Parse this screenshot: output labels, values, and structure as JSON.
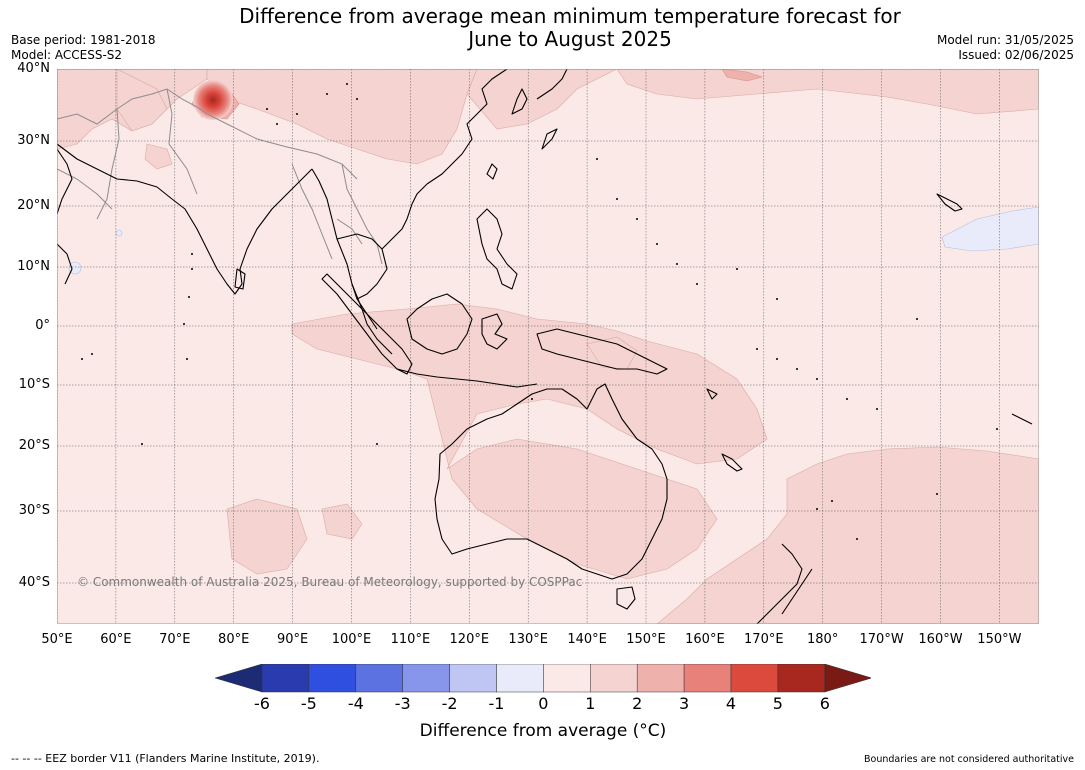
{
  "header": {
    "title_line1": "Difference from average mean minimum temperature forecast for",
    "title_line2": "June to August 2025",
    "base_period": "Base period: 1981-2018",
    "model": "Model: ACCESS-S2",
    "model_run": "Model run: 31/05/2025",
    "issued": "Issued: 02/06/2025"
  },
  "map": {
    "lat_labels": [
      "40°N",
      "30°N",
      "20°N",
      "10°N",
      "0°",
      "10°S",
      "20°S",
      "30°S",
      "40°S"
    ],
    "lon_labels": [
      "50°E",
      "60°E",
      "70°E",
      "80°E",
      "90°E",
      "100°E",
      "110°E",
      "120°E",
      "130°E",
      "140°E",
      "150°E",
      "160°E",
      "170°E",
      "180°",
      "170°W",
      "160°W",
      "150°W"
    ],
    "copyright": "© Commonwealth of Australia 2025, Bureau of Meteorology, supported by COSPPac",
    "colors": {
      "background": "#fbe9e7",
      "anomaly_1_2": "#f4d3d0",
      "anomaly_2_3": "#eeb1ac",
      "anomaly_4_5": "#e04a3e",
      "anomaly_5_6": "#a8271f",
      "anomaly_neg": "#e9ebfa",
      "coast": "#000000",
      "border": "#8c8c8c",
      "grid": "#555555"
    }
  },
  "legend": {
    "label": "Difference from average (°C)",
    "ticks": [
      "-6",
      "-5",
      "-4",
      "-3",
      "-2",
      "-1",
      "0",
      "1",
      "2",
      "3",
      "4",
      "5",
      "6"
    ],
    "colors": [
      "#1d2a74",
      "#2a3bb0",
      "#2f4fe0",
      "#5b72e0",
      "#8796ea",
      "#c0c6f3",
      "#e9ebfa",
      "#fbe9e7",
      "#f4d3d0",
      "#eeb1ac",
      "#e7817a",
      "#dc4a3d",
      "#a8271f",
      "#7a1a15"
    ]
  },
  "footer": {
    "eez": "--  --  -- EEZ border V11 (Flanders Marine Institute, 2019).",
    "disclaimer": "Boundaries are not considered authoritative"
  }
}
